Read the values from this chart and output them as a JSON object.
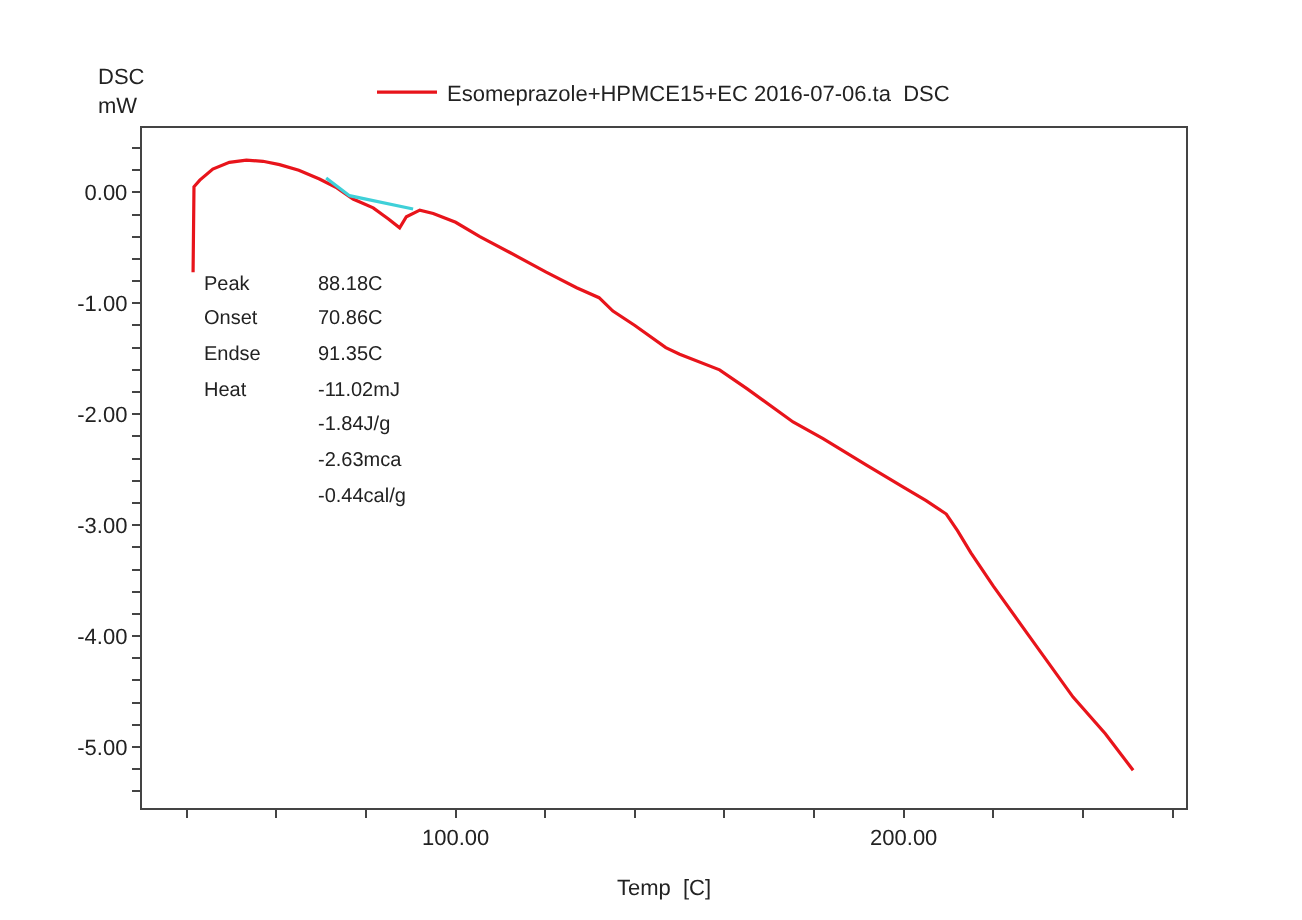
{
  "chart_data": {
    "type": "line",
    "xlabel": "Temp  [C]",
    "ylabel": "DSC\nmW",
    "legend": "top",
    "marker": "none",
    "line_style": "solid",
    "xlim": [
      30,
      263
    ],
    "ylim": [
      -5.55,
      0.58
    ],
    "xticks": [
      {
        "value": 40,
        "label": null
      },
      {
        "value": 60,
        "label": null
      },
      {
        "value": 80,
        "label": null
      },
      {
        "value": 100,
        "label": "100.00"
      },
      {
        "value": 120,
        "label": null
      },
      {
        "value": 140,
        "label": null
      },
      {
        "value": 160,
        "label": null
      },
      {
        "value": 180,
        "label": null
      },
      {
        "value": 200,
        "label": "200.00"
      },
      {
        "value": 220,
        "label": null
      },
      {
        "value": 240,
        "label": null
      },
      {
        "value": 260,
        "label": null
      }
    ],
    "yticks": [
      {
        "value": 0.4,
        "label": null
      },
      {
        "value": 0.2,
        "label": null
      },
      {
        "value": 0,
        "label": "0.00"
      },
      {
        "value": -0.2,
        "label": null
      },
      {
        "value": -0.4,
        "label": null
      },
      {
        "value": -0.6,
        "label": null
      },
      {
        "value": -0.8,
        "label": null
      },
      {
        "value": -1,
        "label": "-1.00"
      },
      {
        "value": -1.2,
        "label": null
      },
      {
        "value": -1.4,
        "label": null
      },
      {
        "value": -1.6,
        "label": null
      },
      {
        "value": -1.8,
        "label": null
      },
      {
        "value": -2,
        "label": "-2.00"
      },
      {
        "value": -2.2,
        "label": null
      },
      {
        "value": -2.4,
        "label": null
      },
      {
        "value": -2.6,
        "label": null
      },
      {
        "value": -2.8,
        "label": null
      },
      {
        "value": -3,
        "label": "-3.00"
      },
      {
        "value": -3.2,
        "label": null
      },
      {
        "value": -3.4,
        "label": null
      },
      {
        "value": -3.6,
        "label": null
      },
      {
        "value": -3.8,
        "label": null
      },
      {
        "value": -4,
        "label": "-4.00"
      },
      {
        "value": -4.2,
        "label": null
      },
      {
        "value": -4.4,
        "label": null
      },
      {
        "value": -4.6,
        "label": null
      },
      {
        "value": -4.8,
        "label": null
      },
      {
        "value": -5,
        "label": "-5.00"
      },
      {
        "value": -5.2,
        "label": null
      },
      {
        "value": -5.4,
        "label": null
      }
    ],
    "series": [
      {
        "name": "Esomeprazole+HPMCE15+EC 2016-07-06.ta  DSC",
        "color": "#e8141b",
        "x": [
          41.4,
          41.6,
          42.9,
          45.8,
          49.5,
          53.3,
          57,
          60.7,
          65,
          69.6,
          73.5,
          77.1,
          81.6,
          85,
          87.5,
          89,
          92,
          95,
          100,
          105.4,
          112,
          120.2,
          127,
          132,
          135.1,
          140,
          146.9,
          150,
          158.9,
          165,
          175.3,
          182,
          191.7,
          200,
          205,
          209.5,
          212,
          215,
          220,
          228,
          237.8,
          245,
          251.2
        ],
        "values": [
          -0.72,
          0.05,
          0.11,
          0.21,
          0.27,
          0.29,
          0.28,
          0.25,
          0.2,
          0.12,
          0.04,
          -0.06,
          -0.14,
          -0.24,
          -0.32,
          -0.22,
          -0.16,
          -0.19,
          -0.27,
          -0.4,
          -0.54,
          -0.72,
          -0.86,
          -0.95,
          -1.07,
          -1.2,
          -1.4,
          -1.46,
          -1.6,
          -1.77,
          -2.07,
          -2.22,
          -2.46,
          -2.66,
          -2.78,
          -2.9,
          -3.05,
          -3.25,
          -3.55,
          -4.0,
          -4.55,
          -4.88,
          -5.21
        ]
      },
      {
        "color": "#3fd0d8",
        "x": [
          71.1,
          76.3,
          90.5
        ],
        "values": [
          0.13,
          -0.03,
          -0.15
        ]
      }
    ],
    "annotations": [
      "Peak\t88.18C",
      "Onset\t70.86C",
      "Endse\t91.35C",
      "Heat\t-11.02mJ",
      "\t-1.84J/g",
      "\t-2.63mca",
      "\t-0.44cal/g"
    ]
  }
}
